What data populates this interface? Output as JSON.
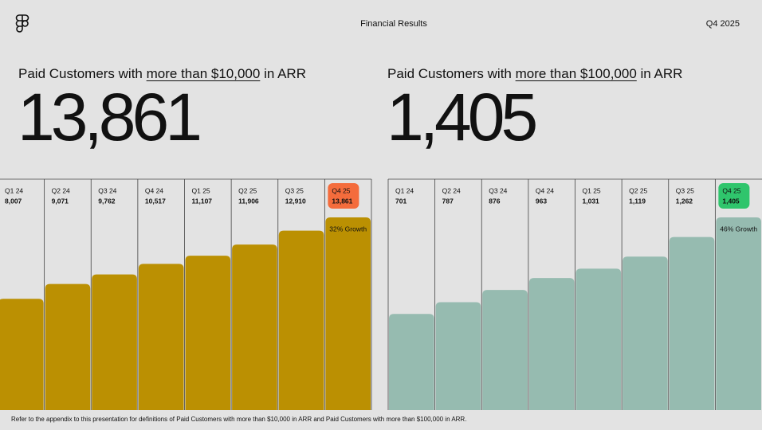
{
  "header": {
    "title": "Financial Results",
    "period": "Q4 2025"
  },
  "chart_data": [
    {
      "type": "bar",
      "title_start": "Paid Customers with",
      "title_link": "more than $10,000",
      "title_end": "in ARR",
      "headline": "13,861",
      "categories": [
        "Q1 24",
        "Q2 24",
        "Q3 24",
        "Q4 24",
        "Q1 25",
        "Q2 25",
        "Q3 25",
        "Q4 25"
      ],
      "values": [
        8007,
        9071,
        9762,
        10517,
        11107,
        11906,
        12910,
        13861
      ],
      "value_labels": [
        "8,007",
        "9,071",
        "9,762",
        "10,517",
        "11,107",
        "11,906",
        "12,910",
        "13,861"
      ],
      "color": "#bb9002",
      "highlight_color": "#f46c3c",
      "annotation": "32% Growth"
    },
    {
      "type": "bar",
      "title_start": "Paid Customers with",
      "title_link": "more than $100,000",
      "title_end": "in ARR",
      "headline": "1,405",
      "categories": [
        "Q1 24",
        "Q2 24",
        "Q3 24",
        "Q4 24",
        "Q1 25",
        "Q2 25",
        "Q3 25",
        "Q4 25"
      ],
      "values": [
        701,
        787,
        876,
        963,
        1031,
        1119,
        1262,
        1405
      ],
      "value_labels": [
        "701",
        "787",
        "876",
        "963",
        "1,031",
        "1,119",
        "1,262",
        "1,405"
      ],
      "color": "#96bbb0",
      "highlight_color": "#2fc56c",
      "annotation": "46% Growth"
    }
  ],
  "footnote": "Refer to the appendix to this presentation for definitions of Paid Customers with more than $10,000 in ARR and Paid Customers with more than $100,000 in ARR."
}
